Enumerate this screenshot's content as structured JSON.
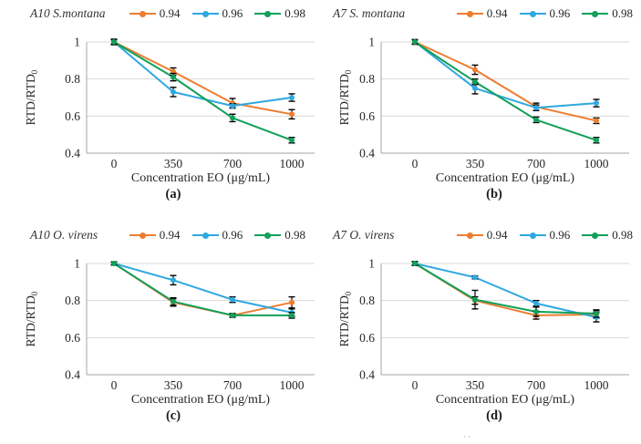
{
  "figure": {
    "colors": {
      "series_094": "#ED7D31",
      "series_096": "#2FA8DF",
      "series_098": "#12A05A",
      "error_bar": "#000000",
      "gridline": "#D9D9D9",
      "axis": "#A6A6A6",
      "text": "#262626"
    },
    "stray_mark": "··"
  },
  "chart_data": [
    {
      "type": "line",
      "title": "A10 S.montana",
      "caption": "(a)",
      "xlabel": "Concentration EO (μg/mL)",
      "ylabel": "RTD/RTD",
      "ylabel_sub": "0",
      "categories": [
        "0",
        "350",
        "700",
        "1000"
      ],
      "x_values": [
        0,
        350,
        700,
        1000
      ],
      "ylim": [
        0.4,
        1.0
      ],
      "ytick_values": [
        1,
        0.8,
        0.6,
        0.4
      ],
      "ytick_labels": [
        "1",
        "0.8",
        "0.6",
        "0.4"
      ],
      "legend_position": "top-right",
      "grid": "horizontal",
      "series": [
        {
          "name": "0.94",
          "color_key": "series_094",
          "values": [
            1.0,
            0.84,
            0.67,
            0.61
          ],
          "errors": [
            0.012,
            0.02,
            0.025,
            0.025
          ]
        },
        {
          "name": "0.96",
          "color_key": "series_096",
          "values": [
            1.0,
            0.73,
            0.655,
            0.7
          ],
          "errors": [
            0.012,
            0.025,
            0.012,
            0.02
          ]
        },
        {
          "name": "0.98",
          "color_key": "series_098",
          "values": [
            1.0,
            0.81,
            0.59,
            0.47
          ],
          "errors": [
            0.015,
            0.02,
            0.02,
            0.015
          ]
        }
      ]
    },
    {
      "type": "line",
      "title": "A7 S. montana",
      "caption": "(b)",
      "xlabel": "Concentration EO (μg/mL)",
      "ylabel": "RTD/RTD",
      "ylabel_sub": "0",
      "categories": [
        "0",
        "350",
        "700",
        "1000"
      ],
      "x_values": [
        0,
        350,
        700,
        1000
      ],
      "ylim": [
        0.4,
        1.0
      ],
      "ytick_values": [
        1,
        0.8,
        0.6,
        0.4
      ],
      "ytick_labels": [
        "1",
        "0.8",
        "0.6",
        "0.4"
      ],
      "legend_position": "top-right",
      "grid": "horizontal",
      "series": [
        {
          "name": "0.94",
          "color_key": "series_094",
          "values": [
            1.0,
            0.85,
            0.65,
            0.575
          ],
          "errors": [
            0.012,
            0.025,
            0.02,
            0.015
          ]
        },
        {
          "name": "0.96",
          "color_key": "series_096",
          "values": [
            1.0,
            0.75,
            0.645,
            0.67
          ],
          "errors": [
            0.012,
            0.03,
            0.015,
            0.02
          ]
        },
        {
          "name": "0.98",
          "color_key": "series_098",
          "values": [
            1.0,
            0.785,
            0.58,
            0.47
          ],
          "errors": [
            0.012,
            0.015,
            0.015,
            0.015
          ]
        }
      ]
    },
    {
      "type": "line",
      "title": "A10 O. virens",
      "caption": "(c)",
      "xlabel": "Concentration EO (μg/mL)",
      "ylabel": "RTD/RTD",
      "ylabel_sub": "0",
      "categories": [
        "0",
        "350",
        "700",
        "1000"
      ],
      "x_values": [
        0,
        350,
        700,
        1000
      ],
      "ylim": [
        0.4,
        1.0
      ],
      "ytick_values": [
        1,
        0.8,
        0.6,
        0.4
      ],
      "ytick_labels": [
        "1",
        "0.8",
        "0.6",
        "0.4"
      ],
      "legend_position": "top-right",
      "grid": "horizontal",
      "series": [
        {
          "name": "0.94",
          "color_key": "series_094",
          "values": [
            1.0,
            0.79,
            0.72,
            0.79
          ],
          "errors": [
            0.008,
            0.02,
            0.01,
            0.03
          ]
        },
        {
          "name": "0.96",
          "color_key": "series_096",
          "values": [
            1.0,
            0.91,
            0.805,
            0.735
          ],
          "errors": [
            0.008,
            0.025,
            0.015,
            0.02
          ]
        },
        {
          "name": "0.98",
          "color_key": "series_098",
          "values": [
            1.0,
            0.795,
            0.72,
            0.72
          ],
          "errors": [
            0.008,
            0.02,
            0.01,
            0.015
          ]
        }
      ]
    },
    {
      "type": "line",
      "title": "A7 O. virens",
      "caption": "(d)",
      "xlabel": "Concentration EO (μg/mL)",
      "ylabel": "RTD/RTD",
      "ylabel_sub": "0",
      "categories": [
        "0",
        "350",
        "700",
        "1000"
      ],
      "x_values": [
        0,
        350,
        700,
        1000
      ],
      "ylim": [
        0.4,
        1.0
      ],
      "ytick_values": [
        1,
        0.8,
        0.6,
        0.4
      ],
      "ytick_labels": [
        "1",
        "0.8",
        "0.6",
        "0.4"
      ],
      "legend_position": "top-right",
      "grid": "horizontal",
      "series": [
        {
          "name": "0.94",
          "color_key": "series_094",
          "values": [
            1.0,
            0.8,
            0.72,
            0.725
          ],
          "errors": [
            0.01,
            0.02,
            0.02,
            0.02
          ]
        },
        {
          "name": "0.96",
          "color_key": "series_096",
          "values": [
            1.0,
            0.925,
            0.785,
            0.71
          ],
          "errors": [
            0.01,
            0.008,
            0.015,
            0.025
          ]
        },
        {
          "name": "0.98",
          "color_key": "series_098",
          "values": [
            1.0,
            0.805,
            0.74,
            0.73
          ],
          "errors": [
            0.01,
            0.05,
            0.025,
            0.02
          ]
        }
      ]
    }
  ]
}
